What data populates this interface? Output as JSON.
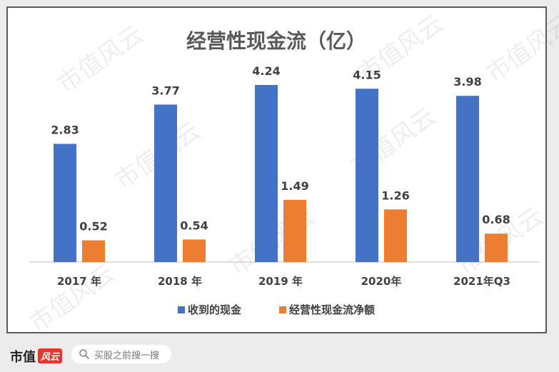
{
  "chart_data": {
    "type": "bar",
    "title": "经营性现金流（亿）",
    "categories": [
      "2017 年",
      "2018 年",
      "2019 年",
      "2020年",
      "2021年Q3"
    ],
    "series": [
      {
        "name": "收到的现金",
        "values": [
          2.83,
          3.77,
          4.24,
          4.15,
          3.98
        ],
        "color": "#4472c4"
      },
      {
        "name": "经营性现金流净额",
        "values": [
          0.52,
          0.54,
          1.49,
          1.26,
          0.68
        ],
        "color": "#ed7d31"
      }
    ],
    "value_labels": [
      [
        "2.83",
        "3.77",
        "4.24",
        "4.15",
        "3.98"
      ],
      [
        "0.52",
        "0.54",
        "1.49",
        "1.26",
        "0.68"
      ]
    ],
    "ylim": [
      0,
      4.24
    ],
    "grid": false,
    "legend_position": "bottom"
  },
  "watermark_text": "市值风云",
  "footer": {
    "brand_text": "市值",
    "brand_logo_text": "风云",
    "search_placeholder": "买股之前搜一搜",
    "search_icon": "search-icon"
  }
}
